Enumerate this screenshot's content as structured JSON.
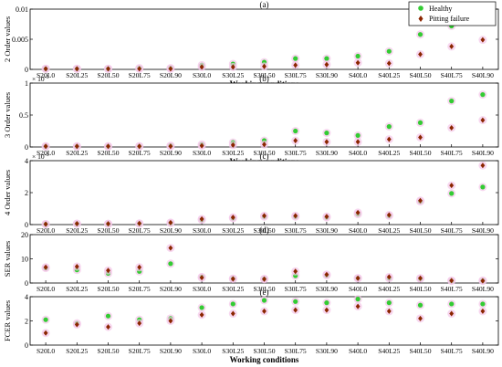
{
  "legend": {
    "placement": "top-right",
    "entries": [
      {
        "name": "Healthy",
        "color": "#33cc33",
        "marker": "circle"
      },
      {
        "name": "Pitting failure",
        "color": "#8b2500",
        "marker": "diamond"
      }
    ]
  },
  "chart_data": [
    {
      "type": "scatter",
      "title": "(a)",
      "ylabel": "2 Order values",
      "xlabel": "Working conditions",
      "exponent": "",
      "ylim": [
        0,
        0.01
      ],
      "yticks": [
        "0",
        "0.005",
        "0.01"
      ],
      "tick_values": [
        0,
        0.005,
        0.01
      ],
      "categories": [
        "S20L0",
        "S20L25",
        "S20L50",
        "S20L75",
        "S20L90",
        "S30L0",
        "S30L25",
        "S30L50",
        "S30L75",
        "S30L90",
        "S40L0",
        "S40L25",
        "S40L50",
        "S40L75",
        "S40L90"
      ],
      "series": [
        {
          "name": "Healthy",
          "values": [
            0.0001,
            0.0001,
            0.0001,
            0.0002,
            0.0002,
            0.0007,
            0.0009,
            0.0012,
            0.0018,
            0.0018,
            0.0022,
            0.003,
            0.0058,
            0.0072,
            0.0088
          ]
        },
        {
          "name": "Pitting failure",
          "values": [
            0.0001,
            0.0001,
            0.0001,
            0.0001,
            0.0001,
            0.0004,
            0.0004,
            0.0005,
            0.0007,
            0.0008,
            0.0011,
            0.001,
            0.0025,
            0.0038,
            0.0049
          ]
        }
      ]
    },
    {
      "type": "scatter",
      "title": "(b)",
      "ylabel": "3 Order values",
      "xlabel": "Working conditions",
      "exponent": "× 10-3",
      "ylim": [
        0,
        0.001
      ],
      "yticks": [
        "0",
        "0.5",
        "1"
      ],
      "tick_values": [
        0,
        0.0005,
        0.001
      ],
      "categories": [
        "S20L0",
        "S20L25",
        "S20L50",
        "S20L75",
        "S20L90",
        "S30L0",
        "S30L25",
        "S30L50",
        "S30L75",
        "S30L90",
        "S40L0",
        "S40L25",
        "S40L50",
        "S40L75",
        "S40L90"
      ],
      "series": [
        {
          "name": "Healthy",
          "values": [
            1e-05,
            1e-05,
            1e-05,
            1e-05,
            2e-05,
            4e-05,
            7e-05,
            0.0001,
            0.00025,
            0.00022,
            0.00018,
            0.00032,
            0.00038,
            0.00072,
            0.00082
          ]
        },
        {
          "name": "Pitting failure",
          "values": [
            1e-05,
            1e-05,
            1e-05,
            1e-05,
            1e-05,
            2e-05,
            3e-05,
            4e-05,
            0.0001,
            8e-05,
            8e-05,
            0.00012,
            0.00015,
            0.0003,
            0.00042
          ]
        }
      ]
    },
    {
      "type": "scatter",
      "title": "(c)",
      "ylabel": "4 Order values",
      "xlabel": "Working conditions",
      "exponent": "× 10-3",
      "ylim": [
        0,
        0.004
      ],
      "yticks": [
        "0",
        "2",
        "4"
      ],
      "tick_values": [
        0,
        0.002,
        0.004
      ],
      "categories": [
        "S20L0",
        "S20L25",
        "S20L50",
        "S20L75",
        "S20L90",
        "S30L0",
        "S30L25",
        "S30L50",
        "S30L75",
        "S30L90",
        "S40L0",
        "S40L25",
        "S40L50",
        "S40L75",
        "S40L90"
      ],
      "series": [
        {
          "name": "Healthy",
          "values": [
            3e-05,
            5e-05,
            4e-05,
            6e-05,
            0.0001,
            0.0003,
            0.0004,
            0.0005,
            0.0005,
            0.00045,
            0.00065,
            0.00055,
            0.00145,
            0.00195,
            0.00235
          ]
        },
        {
          "name": "Pitting failure",
          "values": [
            3e-05,
            6e-05,
            5e-05,
            7e-05,
            0.00012,
            0.00035,
            0.00045,
            0.00055,
            0.00055,
            0.0005,
            0.00075,
            0.0006,
            0.0015,
            0.00245,
            0.0037
          ]
        }
      ]
    },
    {
      "type": "scatter",
      "title": "(d)",
      "ylabel": "SER values",
      "xlabel": "",
      "exponent": "",
      "ylim": [
        0,
        20
      ],
      "yticks": [
        "0",
        "10",
        "20"
      ],
      "tick_values": [
        0,
        10,
        20
      ],
      "categories": [
        "S20L0",
        "S20L25",
        "S20L50",
        "S20L75",
        "S20L90",
        "S30L0",
        "S30L25",
        "S30L50",
        "S30L75",
        "S30L90",
        "S40L0",
        "S40L25",
        "S40L50",
        "S40L75",
        "S40L90"
      ],
      "series": [
        {
          "name": "Healthy",
          "values": [
            6.2,
            5.4,
            4.0,
            4.8,
            8.0,
            2.5,
            1.8,
            1.7,
            3.0,
            3.2,
            2.0,
            2.0,
            1.8,
            0.9,
            1.0
          ]
        },
        {
          "name": "Pitting failure",
          "values": [
            6.5,
            6.8,
            5.2,
            6.5,
            14.5,
            2.2,
            1.7,
            1.6,
            4.8,
            3.5,
            2.0,
            2.5,
            2.0,
            1.0,
            0.9
          ]
        }
      ]
    },
    {
      "type": "scatter",
      "title": "(e)",
      "ylabel": "FCER values",
      "xlabel": "Working conditions",
      "exponent": "",
      "ylim": [
        0,
        4
      ],
      "yticks": [
        "0",
        "2",
        "4"
      ],
      "tick_values": [
        0,
        2,
        4
      ],
      "categories": [
        "S20L0",
        "S20L25",
        "S20L50",
        "S20L75",
        "S20L90",
        "S30L0",
        "S30L25",
        "S30L50",
        "S30L75",
        "S30L90",
        "S40L0",
        "S40L25",
        "S40L50",
        "S40L75",
        "S40L90"
      ],
      "series": [
        {
          "name": "Healthy",
          "values": [
            2.1,
            1.8,
            2.4,
            2.1,
            2.2,
            3.1,
            3.4,
            3.7,
            3.6,
            3.5,
            3.8,
            3.5,
            3.3,
            3.4,
            3.4
          ]
        },
        {
          "name": "Pitting failure",
          "values": [
            1.0,
            1.7,
            1.5,
            1.8,
            2.0,
            2.5,
            2.6,
            2.8,
            2.9,
            2.9,
            3.2,
            2.8,
            2.2,
            2.6,
            2.8
          ]
        }
      ]
    }
  ]
}
